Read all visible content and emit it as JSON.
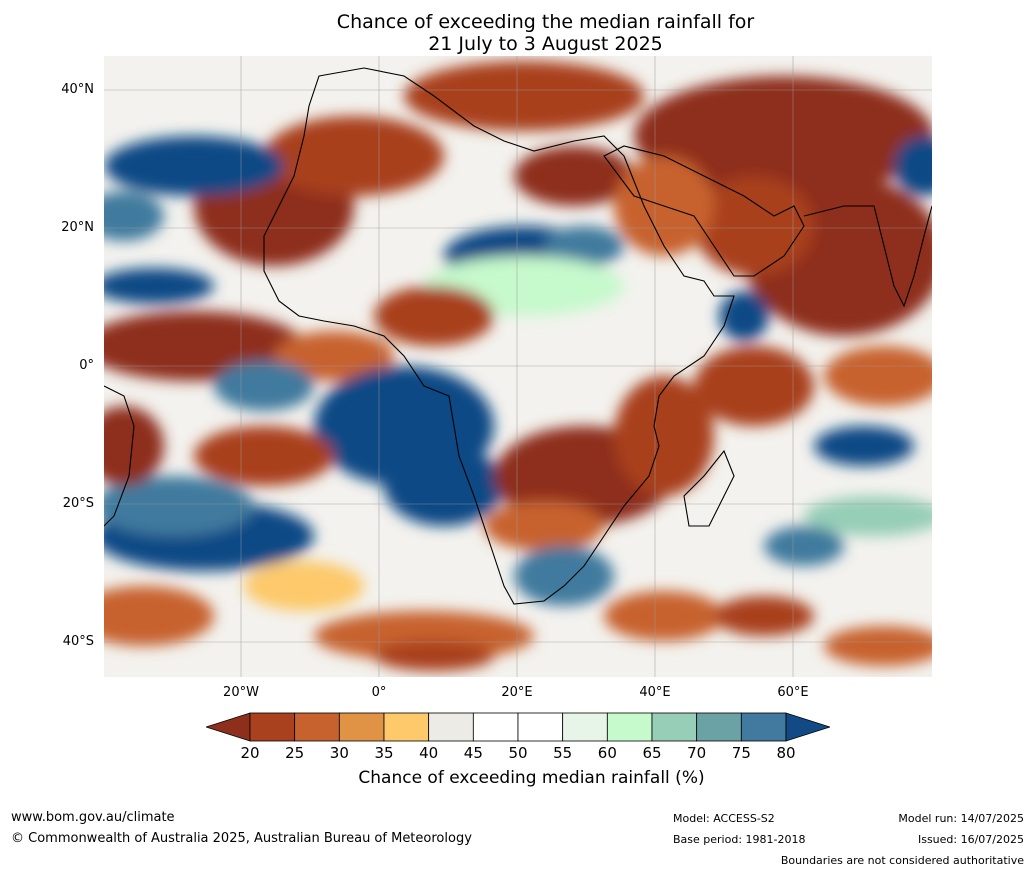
{
  "title": {
    "line1": "Chance of exceeding the median rainfall for",
    "line2": "21 July to 3 August 2025"
  },
  "map": {
    "lat_labels": [
      "40°N",
      "20°N",
      "0°",
      "20°S",
      "40°S"
    ],
    "lon_labels": [
      "20°W",
      "0°",
      "20°E",
      "40°E",
      "60°E"
    ]
  },
  "colorbar": {
    "ticks": [
      "20",
      "25",
      "30",
      "35",
      "40",
      "45",
      "50",
      "55",
      "60",
      "65",
      "70",
      "75",
      "80"
    ],
    "colors": [
      "#8e2f1c",
      "#a9411f",
      "#c7622f",
      "#e09245",
      "#fdc96b",
      "#ecebe6",
      "#ffffff",
      "#ffffff",
      "#e6f5e8",
      "#c6f9cc",
      "#96ceb7",
      "#6ba2a6",
      "#417a9e",
      "#114a85"
    ],
    "label": "Chance of exceeding median rainfall (%)"
  },
  "footer": {
    "website": "www.bom.gov.au/climate",
    "copyright": "© Commonwealth of Australia 2025, Australian Bureau of Meteorology",
    "model": "Model: ACCESS-S2",
    "base_period": "Base period: 1981-2018",
    "model_run": "Model run: 14/07/2025",
    "issued": "Issued: 16/07/2025",
    "disclaimer": "Boundaries are not considered authoritative"
  }
}
